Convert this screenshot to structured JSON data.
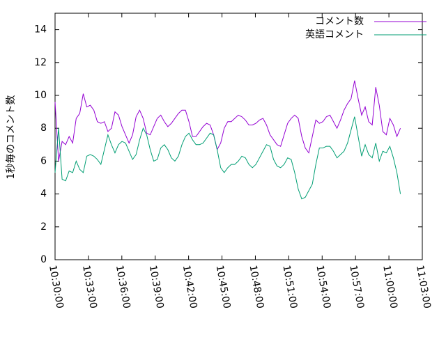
{
  "chart_data": {
    "type": "line",
    "y_label": "1秒毎のコメント数",
    "x": [
      37800,
      37819,
      37838,
      37857,
      37876,
      37895,
      37914,
      37933,
      37952,
      37971,
      37990,
      38009,
      38028,
      38047,
      38066,
      38085,
      38104,
      38123,
      38142,
      38161,
      38180,
      38199,
      38218,
      38237,
      38256,
      38275,
      38294,
      38313,
      38332,
      38351,
      38370,
      38389,
      38408,
      38427,
      38446,
      38465,
      38484,
      38503,
      38522,
      38541,
      38560,
      38579,
      38598,
      38617,
      38636,
      38655,
      38674,
      38693,
      38712,
      38731,
      38750,
      38769,
      38788,
      38807,
      38826,
      38845,
      38864,
      38883,
      38902,
      38921,
      38940,
      38959,
      38978,
      38997,
      39016,
      39035,
      39054,
      39073,
      39092,
      39111,
      39130,
      39149,
      39168,
      39187,
      39206,
      39225,
      39244,
      39263,
      39282,
      39301,
      39320,
      39339,
      39358,
      39377,
      39396,
      39415,
      39434,
      39453,
      39472,
      39491,
      39510,
      39529,
      39548,
      39567,
      39586,
      39605,
      39624,
      39643,
      39662
    ],
    "series": [
      {
        "name": "コメント数",
        "color": "#9400d3",
        "values": [
          9.6,
          6.0,
          7.2,
          7.0,
          7.5,
          7.1,
          8.6,
          8.9,
          10.1,
          9.3,
          9.4,
          9.1,
          8.4,
          8.3,
          8.4,
          7.8,
          8.0,
          9.0,
          8.8,
          8.1,
          7.6,
          7.1,
          7.6,
          8.7,
          9.1,
          8.6,
          7.7,
          7.6,
          8.1,
          8.6,
          8.8,
          8.4,
          8.1,
          8.3,
          8.6,
          8.9,
          9.1,
          9.1,
          8.4,
          7.5,
          7.5,
          7.8,
          8.1,
          8.3,
          8.2,
          7.6,
          6.7,
          7.1,
          8.0,
          8.4,
          8.4,
          8.6,
          8.8,
          8.7,
          8.5,
          8.2,
          8.2,
          8.3,
          8.5,
          8.6,
          8.2,
          7.6,
          7.3,
          7.0,
          6.9,
          7.6,
          8.3,
          8.6,
          8.8,
          8.6,
          7.5,
          6.8,
          6.5,
          7.5,
          8.5,
          8.3,
          8.4,
          8.7,
          8.8,
          8.4,
          8.0,
          8.5,
          9.1,
          9.5,
          9.8,
          10.9,
          9.8,
          8.8,
          9.3,
          8.4,
          8.2,
          10.5,
          9.4,
          7.8,
          7.6,
          8.6,
          8.2,
          7.5,
          8.0
        ]
      },
      {
        "name": "英語コメント",
        "color": "#009e73",
        "values": [
          5.3,
          8.0,
          4.9,
          4.8,
          5.4,
          5.3,
          6.0,
          5.5,
          5.3,
          6.3,
          6.4,
          6.3,
          6.1,
          5.8,
          6.7,
          7.6,
          7.0,
          6.5,
          7.0,
          7.2,
          7.1,
          6.6,
          6.1,
          6.4,
          7.3,
          8.0,
          7.6,
          6.7,
          6.0,
          6.1,
          6.8,
          7.0,
          6.7,
          6.2,
          6.0,
          6.3,
          7.0,
          7.5,
          7.7,
          7.3,
          7.0,
          7.0,
          7.1,
          7.4,
          7.7,
          7.6,
          6.7,
          5.6,
          5.3,
          5.6,
          5.8,
          5.8,
          6.0,
          6.3,
          6.2,
          5.8,
          5.6,
          5.8,
          6.2,
          6.6,
          7.0,
          6.9,
          6.1,
          5.7,
          5.6,
          5.8,
          6.2,
          6.1,
          5.3,
          4.3,
          3.7,
          3.8,
          4.2,
          4.6,
          5.8,
          6.8,
          6.8,
          6.9,
          6.9,
          6.6,
          6.2,
          6.4,
          6.6,
          7.1,
          7.9,
          8.7,
          7.5,
          6.3,
          7.0,
          6.4,
          6.2,
          7.1,
          6.0,
          6.6,
          6.5,
          6.9,
          6.2,
          5.3,
          4.0
        ]
      }
    ],
    "xlim": [
      37800,
      39780
    ],
    "xticks": [
      {
        "value": 37800,
        "label": "10:30:00"
      },
      {
        "value": 37980,
        "label": "10:33:00"
      },
      {
        "value": 38160,
        "label": "10:36:00"
      },
      {
        "value": 38340,
        "label": "10:39:00"
      },
      {
        "value": 38520,
        "label": "10:42:00"
      },
      {
        "value": 38700,
        "label": "10:45:00"
      },
      {
        "value": 38880,
        "label": "10:48:00"
      },
      {
        "value": 39060,
        "label": "10:51:00"
      },
      {
        "value": 39240,
        "label": "10:54:00"
      },
      {
        "value": 39420,
        "label": "10:57:00"
      },
      {
        "value": 39600,
        "label": "11:00:00"
      },
      {
        "value": 39780,
        "label": "11:03:00"
      }
    ],
    "ylim": [
      0,
      15
    ],
    "yticks": [
      0,
      2,
      4,
      6,
      8,
      10,
      12,
      14
    ],
    "grid": false,
    "legend": "top-right"
  }
}
